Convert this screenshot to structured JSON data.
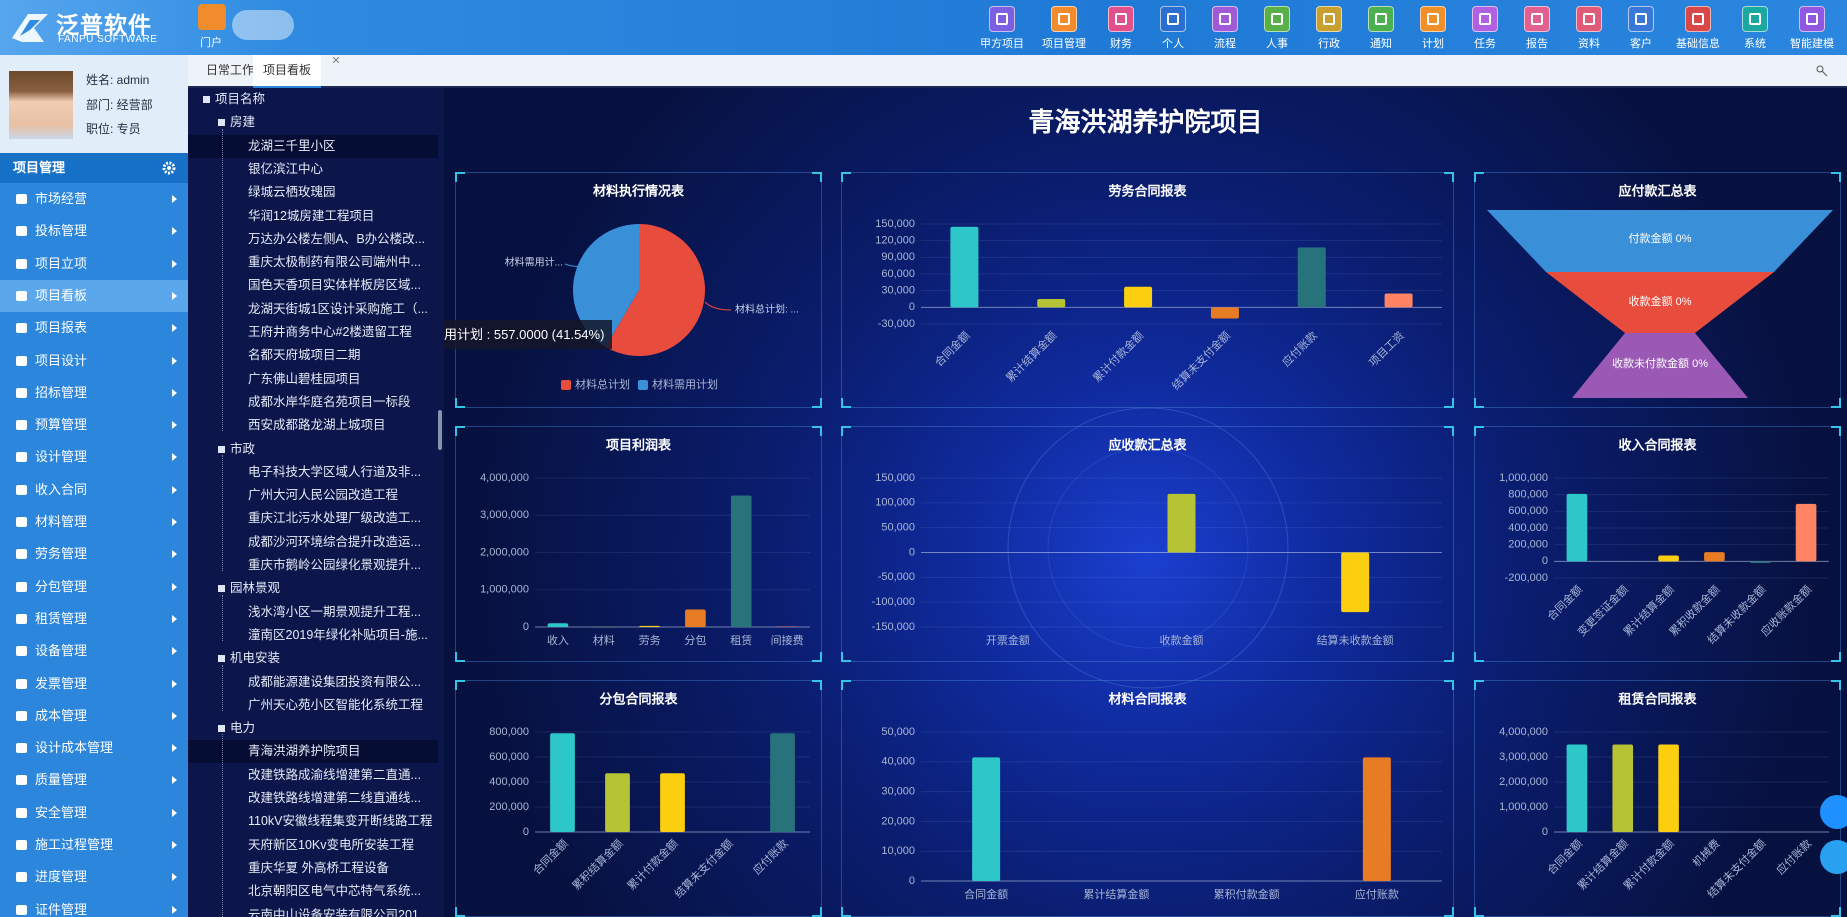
{
  "header": {
    "logo": "泛普软件",
    "logo_sub": "FANPU SOFTWARE",
    "portal": "门户",
    "menu": [
      "甲方项目",
      "项目管理",
      "财务",
      "个人",
      "流程",
      "人事",
      "行政",
      "通知",
      "计划",
      "任务",
      "报告",
      "资料",
      "客户",
      "基础信息",
      "系统",
      "智能建模"
    ]
  },
  "user": {
    "name": "姓名: admin",
    "dept": "部门: 经营部",
    "post": "职位: 专员"
  },
  "sidebar": {
    "title": "项目管理",
    "items": [
      "市场经营",
      "投标管理",
      "项目立项",
      "项目看板",
      "项目报表",
      "项目设计",
      "招标管理",
      "预算管理",
      "设计管理",
      "收入合同",
      "材料管理",
      "劳务管理",
      "分包管理",
      "租赁管理",
      "设备管理",
      "发票管理",
      "成本管理",
      "设计成本管理",
      "质量管理",
      "安全管理",
      "施工过程管理",
      "进度管理",
      "证件管理"
    ]
  },
  "tabs": [
    "日常工作",
    "项目看板"
  ],
  "tree": {
    "root": "项目名称",
    "groups": [
      {
        "name": "房建",
        "items": [
          "龙湖三千里小区",
          "银亿滨江中心",
          "绿城云栖玫瑰园",
          "华润12城房建工程项目",
          "万达办公楼左侧A、B办公楼改...",
          "重庆太极制药有限公司端州中...",
          "国色天香项目实体样板房区域...",
          "龙湖天街城1区设计采购施工（...",
          "王府井商务中心#2楼遗留工程",
          "名都天府城项目二期",
          "广东佛山碧桂园项目",
          "成都水岸华庭名苑项目一标段",
          "西安成都路龙湖上城项目"
        ]
      },
      {
        "name": "市政",
        "items": [
          "电子科技大学区域人行道及非...",
          "广州大河人民公园改造工程",
          "重庆江北污水处理厂级改造工...",
          "成都沙河环境综合提升改造运...",
          "重庆市鹅岭公园绿化景观提升..."
        ]
      },
      {
        "name": "园林景观",
        "items": [
          "浅水湾小区一期景观提升工程...",
          "潼南区2019年绿化补贴项目-施..."
        ]
      },
      {
        "name": "机电安装",
        "items": [
          "成都能源建设集团投资有限公...",
          "广州天心苑小区智能化系统工程"
        ]
      },
      {
        "name": "电力",
        "items": [
          "青海洪湖养护院项目",
          "改建铁路成渝线增建第二直通...",
          "改建铁路线增建第二线直通线...",
          "110kV安徽线程集变开断线路工程",
          "天府新区10Kv变电所安装工程",
          "重庆华夏 外高桥工程设备",
          "北京朝阳区电气中芯特气系统...",
          "云南中山设备安装有限公司201..."
        ]
      }
    ]
  },
  "dashboard": {
    "title": "青海洪湖养护院项目",
    "charts": [
      {
        "type": "pie",
        "title": "材料执行情况表",
        "categories": [
          "材料总计划",
          "材料需用计划"
        ],
        "values": [
          784,
          557
        ],
        "colors": [
          "#e74c3c",
          "#3a8fd9"
        ],
        "slice_labels": [
          "材料总计划: ...",
          "材料需用计..."
        ],
        "tooltip": "用计划 : 557.0000 (41.54%)"
      },
      {
        "type": "bar",
        "title": "劳务合同报表",
        "categories": [
          "合同金额",
          "累计结算金额",
          "累计付款金额",
          "结算未支付金额",
          "应付账款",
          "项目工资"
        ],
        "values": [
          145000,
          15000,
          37000,
          -20000,
          108000,
          25000
        ],
        "colors": [
          "#2ec7c9",
          "#b6c334",
          "#fcce10",
          "#e87c25",
          "#27727b",
          "#fe8463"
        ],
        "ylim": [
          -30000,
          150000
        ],
        "yticks": [
          {
            "value": -30000,
            "label": "-30,000"
          },
          0,
          {
            "value": 30000,
            "label": "30,000"
          },
          {
            "value": 60000,
            "label": "60,000"
          },
          {
            "value": 90000,
            "label": "90,000"
          },
          {
            "value": 120000,
            "label": "120,000"
          },
          {
            "value": 150000,
            "label": "150,000"
          }
        ]
      },
      {
        "type": "funnel",
        "title": "应付款汇总表",
        "labels": [
          "付款金额 0%",
          "收款金额 0%",
          "收款未付款金额 0%"
        ],
        "values": [
          0,
          0,
          0
        ],
        "colors": [
          "#3a8fd9",
          "#e74c3c",
          "#9b59b6"
        ]
      },
      {
        "type": "bar",
        "title": "项目利润表",
        "categories": [
          "收入",
          "材料",
          "劳务",
          "分包",
          "租赁",
          "间接费"
        ],
        "values": [
          100000,
          5000,
          30000,
          470000,
          3530000,
          15000
        ],
        "colors": [
          "#2ec7c9",
          "#b6c334",
          "#fcce10",
          "#e87c25",
          "#27727b",
          "#fe8463"
        ],
        "ylim": [
          0,
          4000000
        ],
        "yticks": [
          0,
          {
            "value": 1000000,
            "label": "1,000,000"
          },
          {
            "value": 2000000,
            "label": "2,000,000"
          },
          {
            "value": 3000000,
            "label": "3,000,000"
          },
          {
            "value": 4000000,
            "label": "4,000,000"
          }
        ]
      },
      {
        "type": "bar",
        "title": "应收款汇总表",
        "categories": [
          "开票金额",
          "收款金额",
          "结算未收款金额"
        ],
        "values": [
          0,
          118000,
          -120000
        ],
        "colors": [
          "#2ec7c9",
          "#b6c334",
          "#fcce10"
        ],
        "ylim": [
          -150000,
          150000
        ],
        "yticks": [
          {
            "value": -150000,
            "label": "-150,000"
          },
          {
            "value": -100000,
            "label": "-100,000"
          },
          {
            "value": -50000,
            "label": "-50,000"
          },
          0,
          {
            "value": 50000,
            "label": "50,000"
          },
          {
            "value": 100000,
            "label": "100,000"
          },
          {
            "value": 150000,
            "label": "150,000"
          }
        ]
      },
      {
        "type": "bar",
        "title": "收入合同报表",
        "categories": [
          "合同金额",
          "变更签证金额",
          "累计结算金额",
          "累积收款金额",
          "结算未收款金额",
          "应收账款金额"
        ],
        "values": [
          810000,
          0,
          70000,
          110000,
          -20000,
          690000
        ],
        "colors": [
          "#2ec7c9",
          "#b6c334",
          "#fcce10",
          "#e87c25",
          "#27727b",
          "#fe8463"
        ],
        "ylim": [
          -200000,
          1000000
        ],
        "yticks": [
          {
            "value": -200000,
            "label": "-200,000"
          },
          0,
          {
            "value": 200000,
            "label": "200,000"
          },
          {
            "value": 400000,
            "label": "400,000"
          },
          {
            "value": 600000,
            "label": "600,000"
          },
          {
            "value": 800000,
            "label": "800,000"
          },
          {
            "value": 1000000,
            "label": "1,000,000"
          }
        ]
      },
      {
        "type": "bar",
        "title": "分包合同报表",
        "categories": [
          "合同金额",
          "累积结算金额",
          "累计付款金额",
          "结算未支付金额",
          "应付账款"
        ],
        "values": [
          790000,
          470000,
          470000,
          0,
          790000
        ],
        "colors": [
          "#2ec7c9",
          "#b6c334",
          "#fcce10",
          "#e87c25",
          "#27727b"
        ],
        "ylim": [
          0,
          800000
        ],
        "yticks": [
          0,
          {
            "value": 200000,
            "label": "200,000"
          },
          {
            "value": 400000,
            "label": "400,000"
          },
          {
            "value": 600000,
            "label": "600,000"
          },
          {
            "value": 800000,
            "label": "800,000"
          }
        ]
      },
      {
        "type": "bar",
        "title": "材料合同报表",
        "categories": [
          "合同金额",
          "累计结算金额",
          "累积付款金额",
          "应付账款"
        ],
        "values": [
          41500,
          0,
          0,
          41500
        ],
        "colors": [
          "#2ec7c9",
          "#b6c334",
          "#fcce10",
          "#e87c25"
        ],
        "ylim": [
          0,
          50000
        ],
        "yticks": [
          0,
          {
            "value": 10000,
            "label": "10,000"
          },
          {
            "value": 20000,
            "label": "20,000"
          },
          {
            "value": 30000,
            "label": "30,000"
          },
          {
            "value": 40000,
            "label": "40,000"
          },
          {
            "value": 50000,
            "label": "50,000"
          }
        ]
      },
      {
        "type": "bar",
        "title": "租赁合同报表",
        "categories": [
          "合同金额",
          "累计结算金额",
          "累计付款金额",
          "机械费",
          "结算未支付金额",
          "应付账款"
        ],
        "values": [
          3500000,
          3500000,
          3500000,
          0,
          0,
          0
        ],
        "colors": [
          "#2ec7c9",
          "#b6c334",
          "#fcce10",
          "#e87c25",
          "#27727b",
          "#fe8463"
        ],
        "ylim": [
          0,
          4000000
        ],
        "yticks": [
          0,
          {
            "value": 1000000,
            "label": "1,000,000"
          },
          {
            "value": 2000000,
            "label": "2,000,000"
          },
          {
            "value": 3000000,
            "label": "3,000,000"
          },
          {
            "value": 4000000,
            "label": "4,000,000"
          }
        ]
      }
    ]
  }
}
